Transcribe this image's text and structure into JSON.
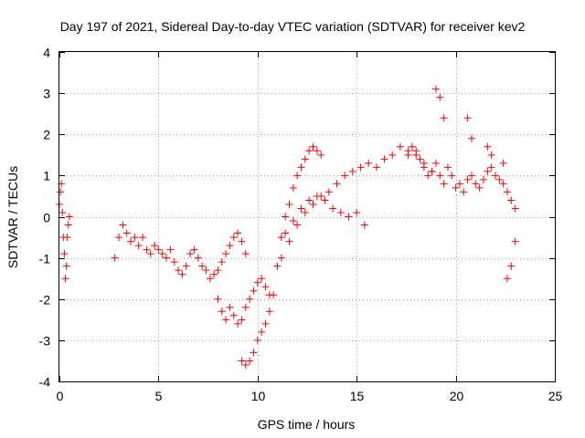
{
  "chart_data": {
    "type": "scatter",
    "title": "Day 197 of 2021, Sidereal Day-to-day VTEC variation (SDTVAR) for receiver kev2",
    "xlabel": "GPS time / hours",
    "ylabel": "SDTVAR / TECUs",
    "xlim": [
      0,
      25
    ],
    "ylim": [
      -4,
      4
    ],
    "xticks": [
      0,
      5,
      10,
      15,
      20,
      25
    ],
    "yticks": [
      -4,
      -3,
      -2,
      -1,
      0,
      1,
      2,
      3,
      4
    ],
    "xtick_labels": [
      "0",
      "5",
      "10",
      "15",
      "20",
      "25"
    ],
    "ytick_labels": [
      "-4",
      "-3",
      "-2",
      "-1",
      "0",
      "1",
      "2",
      "3",
      "4"
    ],
    "grid": true,
    "marker": "+",
    "series": [
      {
        "name": "SDTVAR",
        "color": "#ff0000",
        "x": [
          0.0,
          0.05,
          0.1,
          0.15,
          0.2,
          0.25,
          0.3,
          0.35,
          0.4,
          0.45,
          0.5,
          2.8,
          3.0,
          3.2,
          3.4,
          3.6,
          3.8,
          4.0,
          4.2,
          4.4,
          4.6,
          4.8,
          5.0,
          5.2,
          5.4,
          5.6,
          5.8,
          6.0,
          6.2,
          6.4,
          6.6,
          6.8,
          7.0,
          7.2,
          7.4,
          7.6,
          7.8,
          8.0,
          8.2,
          8.4,
          8.6,
          8.8,
          9.0,
          9.2,
          9.4,
          8.0,
          8.2,
          8.4,
          8.6,
          8.8,
          9.0,
          9.2,
          9.4,
          9.6,
          9.8,
          10.0,
          10.2,
          10.4,
          10.6,
          9.2,
          9.4,
          9.6,
          9.8,
          10.0,
          10.2,
          10.4,
          10.6,
          10.8,
          11.0,
          11.2,
          11.4,
          11.6,
          11.8,
          12.0,
          12.2,
          12.4,
          12.6,
          12.8,
          13.0,
          13.2,
          11.2,
          11.6,
          12.0,
          12.4,
          12.8,
          13.2,
          13.6,
          14.0,
          14.4,
          14.8,
          15.2,
          15.6,
          16.0,
          16.4,
          16.8,
          17.2,
          17.6,
          18.0,
          18.4,
          18.8,
          11.4,
          11.8,
          12.2,
          12.6,
          13.0,
          13.4,
          13.8,
          14.2,
          14.6,
          15.0,
          15.4,
          17.6,
          17.8,
          18.0,
          18.2,
          18.4,
          18.6,
          18.8,
          19.0,
          19.2,
          19.4,
          19.6,
          19.8,
          20.0,
          20.2,
          20.4,
          20.6,
          20.8,
          21.0,
          21.2,
          21.4,
          21.6,
          21.8,
          22.0,
          22.2,
          22.4,
          22.6,
          22.8,
          23.0,
          19.0,
          19.2,
          19.4,
          20.6,
          20.8,
          21.6,
          21.8,
          22.4,
          22.6,
          22.8,
          23.0
        ],
        "y": [
          0.3,
          0.6,
          0.8,
          0.1,
          -0.5,
          -0.9,
          -1.5,
          -1.2,
          -0.5,
          -0.2,
          0.0,
          -1.0,
          -0.5,
          -0.2,
          -0.4,
          -0.6,
          -0.5,
          -0.7,
          -0.5,
          -0.8,
          -0.9,
          -0.7,
          -0.8,
          -0.9,
          -1.0,
          -0.8,
          -1.1,
          -1.3,
          -1.4,
          -1.2,
          -0.9,
          -0.8,
          -1.0,
          -1.2,
          -1.3,
          -1.5,
          -1.4,
          -1.3,
          -1.1,
          -0.9,
          -0.7,
          -0.5,
          -0.4,
          -0.6,
          -0.9,
          -2.0,
          -2.3,
          -2.5,
          -2.2,
          -2.4,
          -2.6,
          -2.5,
          -2.2,
          -2.0,
          -1.8,
          -1.6,
          -1.5,
          -1.7,
          -1.9,
          -3.5,
          -3.6,
          -3.5,
          -3.3,
          -3.0,
          -2.8,
          -2.6,
          -2.3,
          -1.9,
          -1.2,
          -0.5,
          0.0,
          0.3,
          0.7,
          1.0,
          1.2,
          1.4,
          1.6,
          1.7,
          1.6,
          1.5,
          -1.0,
          -0.6,
          -0.2,
          0.1,
          0.3,
          0.5,
          0.6,
          0.8,
          1.0,
          1.1,
          1.2,
          1.3,
          1.2,
          1.4,
          1.5,
          1.7,
          1.6,
          1.5,
          1.3,
          1.1,
          -0.4,
          -0.1,
          0.2,
          0.4,
          0.5,
          0.4,
          0.2,
          0.1,
          0.0,
          0.1,
          -0.2,
          1.5,
          1.7,
          1.6,
          1.4,
          1.2,
          1.0,
          1.1,
          1.3,
          1.0,
          0.8,
          1.2,
          1.0,
          0.7,
          0.8,
          0.6,
          0.9,
          1.0,
          0.8,
          0.7,
          0.9,
          1.1,
          1.2,
          1.0,
          0.9,
          0.8,
          0.6,
          0.4,
          0.2,
          3.1,
          2.9,
          2.4,
          2.4,
          1.9,
          1.7,
          1.5,
          1.3,
          -1.5,
          -1.2,
          -0.6
        ]
      }
    ]
  }
}
